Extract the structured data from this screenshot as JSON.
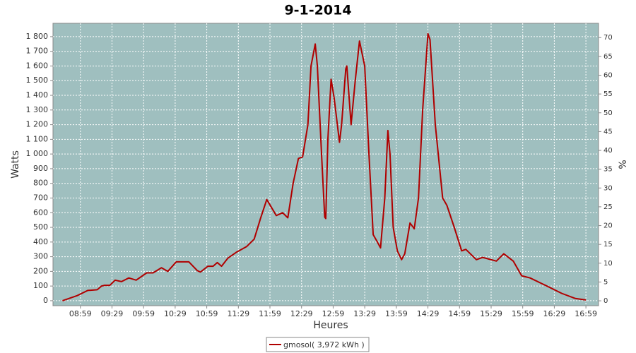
{
  "chart_data": {
    "type": "line",
    "title": "9-1-2014",
    "x_label": "Heures",
    "y_label": "Watts",
    "y2_label": "%",
    "x": [
      "08:42",
      "08:50",
      "08:56",
      "09:06",
      "09:15",
      "09:19",
      "09:22",
      "09:27",
      "09:32",
      "09:38",
      "09:45",
      "09:52",
      "10:02",
      "10:08",
      "10:16",
      "10:22",
      "10:30",
      "10:42",
      "10:50",
      "10:53",
      "11:00",
      "11:05",
      "11:09",
      "11:13",
      "11:19",
      "11:27",
      "11:37",
      "11:44",
      "11:50",
      "11:56",
      "12:05",
      "12:11",
      "12:16",
      "12:21",
      "12:26",
      "12:30",
      "12:35",
      "12:38",
      "12:42",
      "12:44",
      "12:48",
      "12:51",
      "12:52",
      "12:54",
      "12:57",
      "13:00",
      "13:05",
      "13:07",
      "13:11",
      "13:12",
      "13:16",
      "13:20",
      "13:24",
      "13:29",
      "13:33",
      "13:37",
      "13:41",
      "13:44",
      "13:48",
      "13:51",
      "13:53",
      "13:56",
      "14:00",
      "14:04",
      "14:07",
      "14:12",
      "14:16",
      "14:20",
      "14:24",
      "14:29",
      "14:31",
      "14:36",
      "14:43",
      "14:47",
      "14:54",
      "15:01",
      "15:05",
      "15:15",
      "15:21",
      "15:34",
      "15:41",
      "15:50",
      "15:58",
      "16:06",
      "16:22",
      "16:36",
      "16:49",
      "16:59"
    ],
    "series": [
      {
        "name": "gmosol( 3,972 kWh )",
        "color": "#b00000",
        "values": [
          0,
          20,
          35,
          70,
          75,
          100,
          105,
          105,
          140,
          130,
          155,
          140,
          190,
          190,
          225,
          200,
          265,
          265,
          205,
          195,
          235,
          235,
          260,
          235,
          290,
          330,
          370,
          420,
          560,
          690,
          580,
          600,
          565,
          800,
          970,
          980,
          1200,
          1600,
          1750,
          1600,
          1000,
          570,
          560,
          1100,
          1510,
          1380,
          1080,
          1200,
          1580,
          1600,
          1200,
          1500,
          1770,
          1600,
          1000,
          450,
          400,
          360,
          700,
          1160,
          1000,
          500,
          340,
          280,
          320,
          530,
          490,
          700,
          1300,
          1820,
          1780,
          1200,
          700,
          650,
          500,
          340,
          350,
          280,
          295,
          270,
          320,
          270,
          170,
          155,
          100,
          50,
          15,
          5
        ]
      }
    ],
    "xlim": [
      "08:33",
      "17:11"
    ],
    "xticks": [
      "08:59",
      "09:29",
      "09:59",
      "10:29",
      "10:59",
      "11:29",
      "11:59",
      "12:29",
      "12:59",
      "13:29",
      "13:59",
      "14:29",
      "14:59",
      "15:29",
      "15:59",
      "16:29",
      "16:59"
    ],
    "ylim": [
      -34,
      1891
    ],
    "yticks": [
      0,
      100,
      200,
      300,
      400,
      500,
      600,
      700,
      800,
      900,
      {
        "value": 1000,
        "label": "1 000"
      },
      {
        "value": 1100,
        "label": "1 100"
      },
      {
        "value": 1200,
        "label": "1 200"
      },
      {
        "value": 1300,
        "label": "1 300"
      },
      {
        "value": 1400,
        "label": "1 400"
      },
      {
        "value": 1500,
        "label": "1 500"
      },
      {
        "value": 1600,
        "label": "1 600"
      },
      {
        "value": 1700,
        "label": "1 700"
      },
      {
        "value": 1800,
        "label": "1 800"
      }
    ],
    "y2lim": [
      -1.3,
      73.8
    ],
    "y2ticks": [
      0,
      5,
      10,
      15,
      20,
      25,
      30,
      35,
      40,
      45,
      50,
      55,
      60,
      65,
      70
    ],
    "grid": true,
    "plot_background": "#9fbfbf",
    "legend": "bottom"
  }
}
